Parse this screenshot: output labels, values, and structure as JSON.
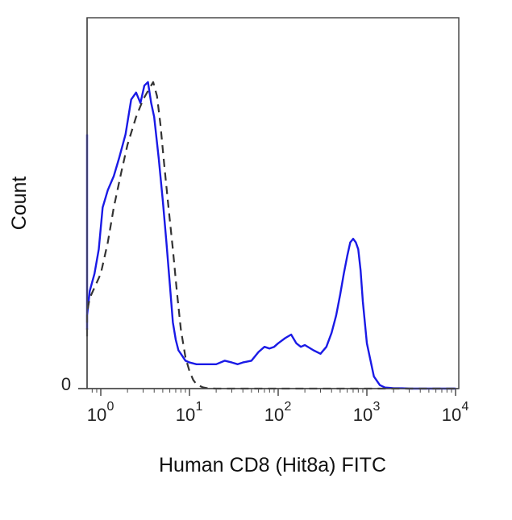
{
  "chart_data": {
    "type": "line",
    "title": "",
    "xlabel": "Human CD8 (Hit8a) FITC",
    "ylabel": "Count",
    "x_scale": "log",
    "xlim": [
      0.5,
      10000
    ],
    "ylim": [
      0,
      100
    ],
    "x_ticks": [
      {
        "base": "10",
        "exp": "0",
        "value": 1
      },
      {
        "base": "10",
        "exp": "1",
        "value": 10
      },
      {
        "base": "10",
        "exp": "2",
        "value": 100
      },
      {
        "base": "10",
        "exp": "3",
        "value": 1000
      },
      {
        "base": "10",
        "exp": "4",
        "value": 10000
      }
    ],
    "y_ticks": [
      {
        "label": "0",
        "value": 0
      }
    ],
    "grid": false,
    "legend": "none",
    "series": [
      {
        "style": "solid",
        "color": "#1a1ae6",
        "x": [
          0.5,
          0.52,
          0.55,
          0.58,
          0.62,
          0.68,
          0.75,
          0.85,
          0.95,
          1.05,
          1.2,
          1.4,
          1.6,
          1.9,
          2.2,
          2.5,
          2.8,
          3.1,
          3.4,
          3.7,
          4.0,
          4.5,
          5.0,
          5.5,
          6.0,
          6.5,
          7.0,
          7.5,
          8.0,
          9.0,
          10,
          12,
          15,
          20,
          25,
          30,
          35,
          40,
          50,
          60,
          70,
          80,
          90,
          100,
          120,
          140,
          160,
          180,
          200,
          250,
          300,
          350,
          400,
          450,
          500,
          550,
          600,
          650,
          700,
          750,
          800,
          850,
          900,
          1000,
          1200,
          1400,
          1600,
          1800,
          2000,
          2500,
          3000,
          5000,
          10000
        ],
        "y": [
          73,
          60,
          42,
          22,
          17,
          21,
          28,
          33,
          40,
          52,
          57,
          61,
          66,
          73,
          83,
          85,
          82,
          87,
          88,
          82,
          78,
          66,
          54,
          42,
          30,
          19,
          14,
          11,
          10,
          8,
          7.5,
          7,
          7,
          7,
          8,
          7.5,
          7,
          7.5,
          8,
          10.5,
          12,
          11.5,
          12,
          13,
          14.5,
          15.5,
          13,
          12,
          12.5,
          11,
          10,
          12,
          16,
          21,
          27,
          33,
          38,
          42,
          43,
          42,
          40,
          34,
          25,
          13,
          3.5,
          1,
          0.3,
          0.2,
          0.1,
          0.1,
          0,
          0,
          0
        ]
      },
      {
        "style": "dashed",
        "color": "#333333",
        "x": [
          0.5,
          0.58,
          0.65,
          0.75,
          0.85,
          1.0,
          1.2,
          1.4,
          1.7,
          2.0,
          2.5,
          3.0,
          3.5,
          3.9,
          4.3,
          4.7,
          5.2,
          5.8,
          6.5,
          7.2,
          8.0,
          9.0,
          10,
          11,
          12,
          14,
          16,
          20,
          50,
          100,
          1000,
          10000
        ],
        "y": [
          15,
          18,
          22,
          26,
          29,
          33,
          42,
          52,
          62,
          70,
          78,
          83,
          86,
          88,
          84,
          76,
          64,
          52,
          40,
          28,
          17,
          9,
          5,
          2.5,
          1.2,
          0.4,
          0.1,
          0,
          0,
          0,
          0,
          0
        ]
      }
    ]
  }
}
